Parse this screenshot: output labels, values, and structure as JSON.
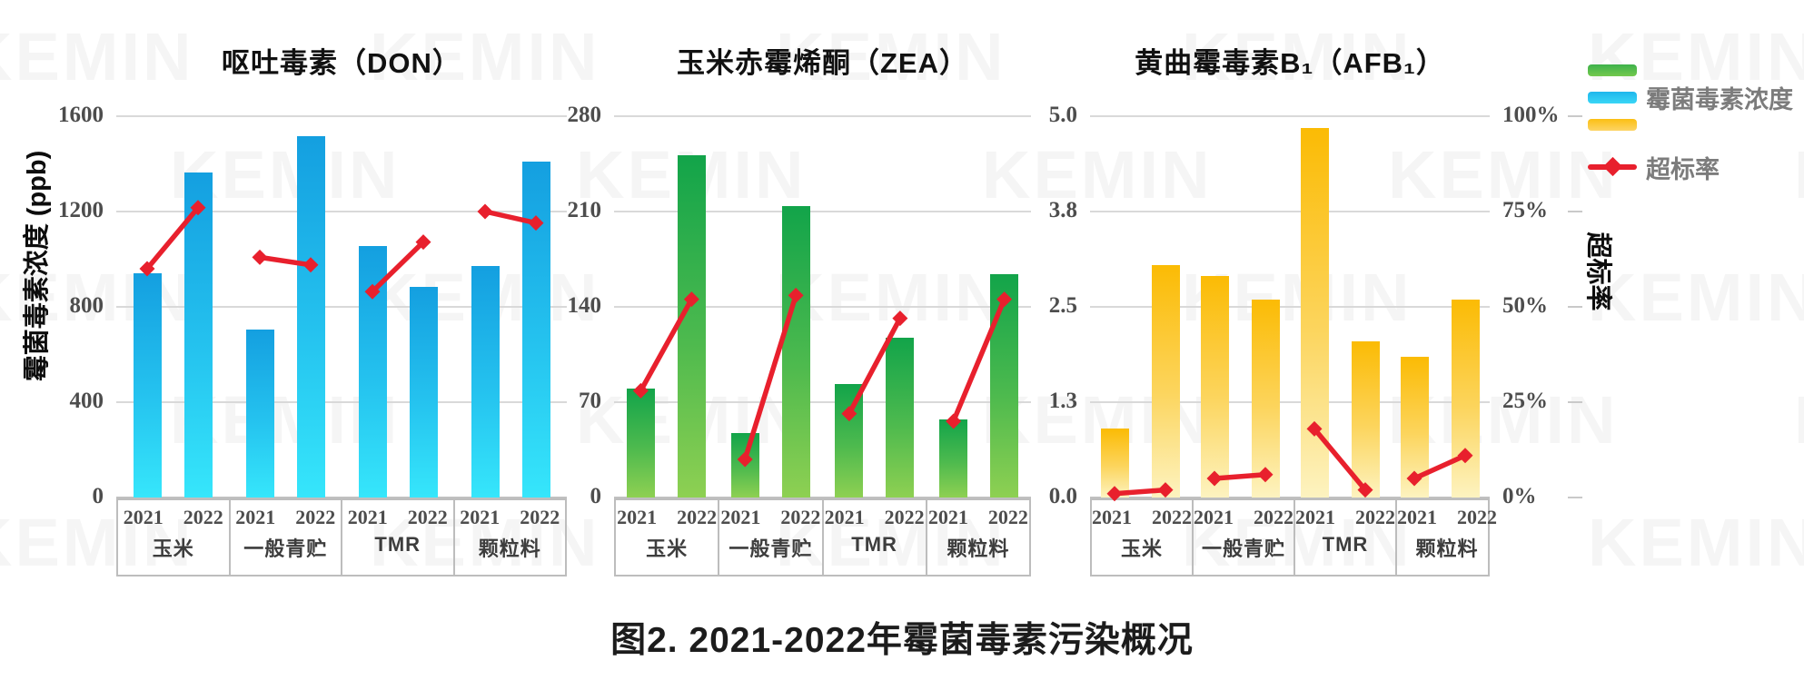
{
  "watermark": {
    "text": "KEMIN"
  },
  "caption": "图2. 2021-2022年霉菌毒素污染概况",
  "left_axis_title": "霉菌毒素浓度 (ppb)",
  "right_axis_title": "超标率",
  "legend": {
    "series_label": "霉菌毒素浓度",
    "rate_label": "超标率"
  },
  "percent_ticks": [
    "100%",
    "75%",
    "50%",
    "25%",
    "0%"
  ],
  "colors": {
    "don_bar_top": "#149fe0",
    "don_bar_bottom": "#36e6fb",
    "zea_bar_top": "#12a44a",
    "zea_bar_bottom": "#8ed052",
    "afb_bar_top": "#fbbb04",
    "afb_bar_bottom": "#fdf3c0",
    "rate_line": "#e8202d",
    "gridline": "#d9d9d9"
  },
  "chart_data": [
    {
      "type": "bar",
      "title": "呕吐毒素（DON）",
      "categories": [
        "玉米",
        "一般青贮",
        "TMR",
        "颗粒料"
      ],
      "years": [
        "2021",
        "2022"
      ],
      "ylabel": "霉菌毒素浓度 (ppb)",
      "ylim": [
        0,
        1600
      ],
      "yticks": [
        "1600",
        "1200",
        "800",
        "400",
        "0"
      ],
      "series": [
        {
          "name": "霉菌毒素浓度",
          "unit": "ppb",
          "values": [
            [
              940,
              1365
            ],
            [
              705,
              1515
            ],
            [
              1055,
              885
            ],
            [
              970,
              1410
            ]
          ]
        },
        {
          "name": "超标率",
          "unit": "%",
          "values": [
            [
              60,
              76
            ],
            [
              63,
              61
            ],
            [
              54,
              67
            ],
            [
              75,
              72
            ]
          ]
        }
      ],
      "legend_position": "top-right-outside",
      "grid": true
    },
    {
      "type": "bar",
      "title": "玉米赤霉烯酮（ZEA）",
      "categories": [
        "玉米",
        "一般青贮",
        "TMR",
        "颗粒料"
      ],
      "years": [
        "2021",
        "2022"
      ],
      "ylabel": "霉菌毒素浓度 (ppb)",
      "ylim": [
        0,
        280
      ],
      "yticks": [
        "280",
        "210",
        "140",
        "70",
        "0"
      ],
      "series": [
        {
          "name": "霉菌毒素浓度",
          "unit": "ppb",
          "values": [
            [
              80,
              251
            ],
            [
              47,
              214
            ],
            [
              83,
              117
            ],
            [
              57,
              164
            ]
          ]
        },
        {
          "name": "超标率",
          "unit": "%",
          "values": [
            [
              28,
              52
            ],
            [
              10,
              53
            ],
            [
              22,
              47
            ],
            [
              20,
              52
            ]
          ]
        }
      ],
      "legend_position": "top-right-outside",
      "grid": true
    },
    {
      "type": "bar",
      "title": "黄曲霉毒素B₁（AFB₁）",
      "categories": [
        "玉米",
        "一般青贮",
        "TMR",
        "颗粒料"
      ],
      "years": [
        "2021",
        "2022"
      ],
      "ylabel": "霉菌毒素浓度 (ppb)",
      "ylim": [
        0,
        5.0
      ],
      "yticks": [
        "5.0",
        "3.8",
        "2.5",
        "1.3",
        "0.0"
      ],
      "series": [
        {
          "name": "霉菌毒素浓度",
          "unit": "ppb",
          "values": [
            [
              0.9,
              3.05
            ],
            [
              2.9,
              2.6
            ],
            [
              4.85,
              2.05
            ],
            [
              1.85,
              2.6
            ]
          ]
        },
        {
          "name": "超标率",
          "unit": "%",
          "values": [
            [
              1,
              2
            ],
            [
              5,
              6
            ],
            [
              18,
              2
            ],
            [
              5,
              11
            ]
          ]
        }
      ],
      "legend_position": "top-right-outside",
      "grid": true
    }
  ]
}
